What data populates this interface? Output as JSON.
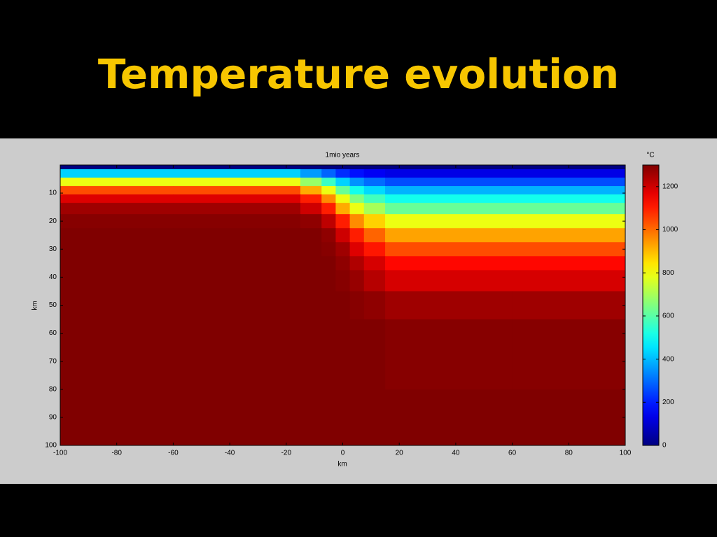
{
  "slide": {
    "title": "Temperature evolution"
  },
  "chart_data": {
    "type": "heatmap",
    "title": "1mio years",
    "xlabel": "km",
    "ylabel": "km",
    "x": [
      -100,
      -20,
      -10,
      -5,
      0,
      5,
      10,
      20,
      100
    ],
    "y": [
      0,
      3,
      6,
      9,
      12,
      15,
      20,
      25,
      30,
      35,
      40,
      50,
      60,
      100
    ],
    "values": [
      [
        0,
        0,
        0,
        0,
        0,
        0,
        0,
        0,
        0
      ],
      [
        430,
        430,
        360,
        290,
        220,
        180,
        150,
        130,
        130
      ],
      [
        790,
        790,
        680,
        560,
        430,
        350,
        300,
        260,
        260
      ],
      [
        1040,
        1040,
        920,
        790,
        620,
        510,
        440,
        390,
        390
      ],
      [
        1180,
        1180,
        1100,
        960,
        790,
        650,
        570,
        510,
        510
      ],
      [
        1260,
        1260,
        1200,
        1100,
        920,
        790,
        700,
        620,
        620
      ],
      [
        1290,
        1290,
        1280,
        1220,
        1100,
        960,
        870,
        790,
        790
      ],
      [
        1300,
        1300,
        1300,
        1280,
        1200,
        1100,
        1010,
        930,
        930
      ],
      [
        1300,
        1300,
        1300,
        1290,
        1260,
        1180,
        1110,
        1040,
        1040
      ],
      [
        1300,
        1300,
        1300,
        1300,
        1280,
        1240,
        1190,
        1130,
        1130
      ],
      [
        1300,
        1300,
        1300,
        1300,
        1290,
        1270,
        1230,
        1190,
        1190
      ],
      [
        1300,
        1300,
        1300,
        1300,
        1300,
        1290,
        1280,
        1260,
        1260
      ],
      [
        1300,
        1300,
        1300,
        1300,
        1300,
        1300,
        1300,
        1290,
        1290
      ],
      [
        1300,
        1300,
        1300,
        1300,
        1300,
        1300,
        1300,
        1300,
        1300
      ]
    ],
    "xlim": [
      -100,
      100
    ],
    "xticks": [
      -100,
      -80,
      -60,
      -40,
      -20,
      0,
      20,
      40,
      60,
      80,
      100
    ],
    "ylim": [
      0,
      100
    ],
    "y_inverted": true,
    "yticks": [
      10,
      20,
      30,
      40,
      50,
      60,
      70,
      80,
      90,
      100
    ],
    "colormap": "jet",
    "colorbar": {
      "label": "°C",
      "lim": [
        0,
        1300
      ],
      "ticks": [
        0,
        200,
        400,
        600,
        800,
        1000,
        1200
      ]
    }
  }
}
